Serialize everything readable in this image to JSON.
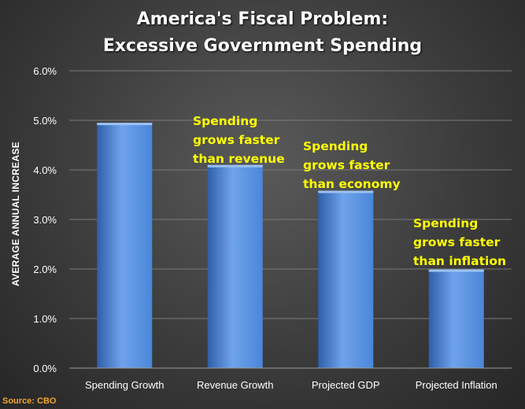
{
  "chart_data": {
    "type": "bar",
    "title_lines": [
      "America's Fiscal Problem:",
      "Excessive Government Spending"
    ],
    "xlabel": "",
    "ylabel": "AVERAGE ANNUAL INCREASE",
    "categories": [
      "Spending Growth",
      "Revenue Growth",
      "Projected GDP",
      "Projected Inflation"
    ],
    "values": [
      4.95,
      4.1,
      3.58,
      1.99
    ],
    "ylim": [
      0,
      6
    ],
    "yticks": [
      "0.0%",
      "1.0%",
      "2.0%",
      "3.0%",
      "4.0%",
      "5.0%",
      "6.0%"
    ],
    "grid": true,
    "legend": "none",
    "annotations": [
      [
        "Spending",
        "grows faster",
        "than revenue"
      ],
      [
        "Spending",
        "grows faster",
        "than economy"
      ],
      [
        "Spending",
        "grows faster",
        "than inflation"
      ]
    ],
    "source": "Source: CBO"
  },
  "colors": {
    "bar": "#4a86d8",
    "bar_light": "#6fa3ec",
    "bar_dark": "#2f5fa8",
    "annotation": "#ffff00",
    "source": "#f4a52a",
    "grid": "#7a7a7a"
  }
}
